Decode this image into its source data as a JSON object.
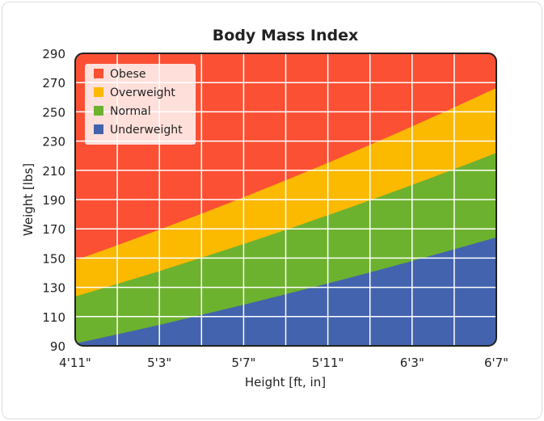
{
  "chart_data": {
    "type": "area",
    "title": "Body Mass Index",
    "xlabel": "Height  [ft, in]",
    "ylabel": "Weight [lbs]",
    "x_tick_labels": [
      "4'11\"",
      "5'3\"",
      "5'7\"",
      "5'11\"",
      "6'3\"",
      "6'7\""
    ],
    "x": [
      "4'11\"",
      "5'1\"",
      "5'3\"",
      "5'5\"",
      "5'7\"",
      "5'9\"",
      "5'11\"",
      "6'1\"",
      "6'3\"",
      "6'5\"",
      "6'7\""
    ],
    "y_ticks": [
      90,
      110,
      130,
      150,
      170,
      190,
      210,
      230,
      250,
      270,
      290
    ],
    "ylim": [
      90,
      290
    ],
    "grid": true,
    "legend_position": "top-left",
    "series": [
      {
        "name": "Underweight",
        "color": "#4363ae",
        "upper": [
          91.6,
          97.9,
          104.3,
          111.2,
          118.1,
          125.3,
          132.7,
          140.2,
          148.0,
          156.0,
          164.2
        ]
      },
      {
        "name": "Normal",
        "color": "#6db22e",
        "upper": [
          123.8,
          132.3,
          141.1,
          150.3,
          159.6,
          169.3,
          179.3,
          189.5,
          200.0,
          210.8,
          221.9
        ]
      },
      {
        "name": "Overweight",
        "color": "#fbb900",
        "upper": [
          148.5,
          158.8,
          169.4,
          180.3,
          191.6,
          203.2,
          215.1,
          227.4,
          240.0,
          253.0,
          266.3
        ]
      },
      {
        "name": "Obese",
        "color": "#fb5034",
        "upper": [
          290,
          290,
          290,
          290,
          290,
          290,
          290,
          290,
          290,
          290,
          290
        ]
      }
    ],
    "legend": [
      "Obese",
      "Overweight",
      "Normal",
      "Underweight"
    ]
  }
}
